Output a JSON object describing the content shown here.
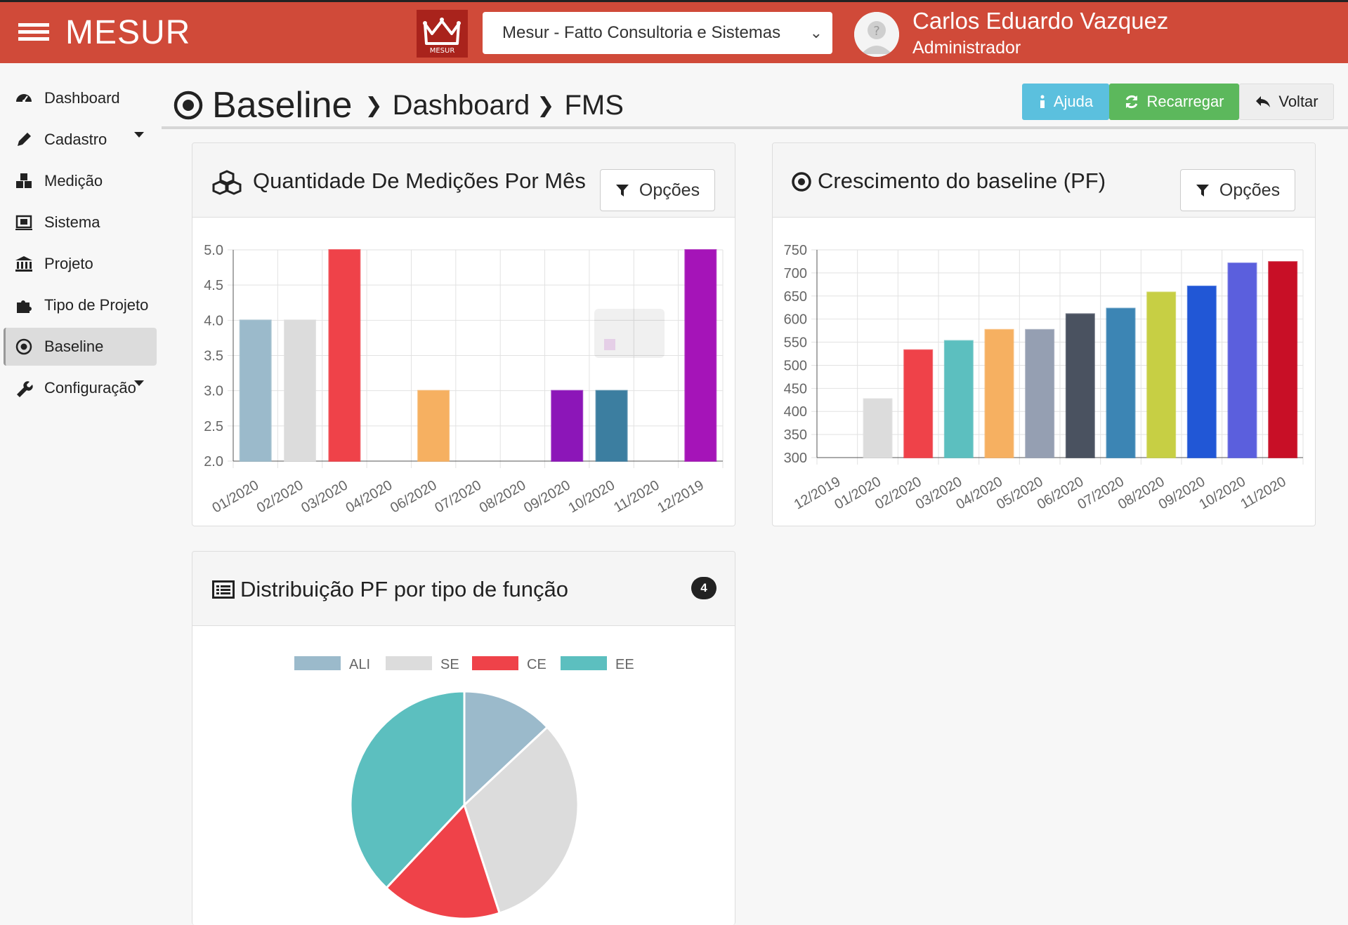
{
  "app": {
    "brand": "MESUR",
    "logo_text": "MESUR",
    "org_select_value": "Mesur - Fatto Consultoria e Sistemas",
    "user_name": "Carlos Eduardo Vazquez",
    "user_role": "Administrador"
  },
  "colors": {
    "topbar": "#d04a39",
    "help": "#5bc0de",
    "reload": "#5cb85c"
  },
  "sidebar": {
    "items": [
      {
        "label": "Dashboard",
        "icon": "dashboard-icon"
      },
      {
        "label": "Cadastro",
        "icon": "pencil-icon",
        "has_submenu": true
      },
      {
        "label": "Medição",
        "icon": "cubes-icon"
      },
      {
        "label": "Sistema",
        "icon": "system-icon"
      },
      {
        "label": "Projeto",
        "icon": "institution-icon"
      },
      {
        "label": "Tipo de Projeto",
        "icon": "puzzle-icon"
      },
      {
        "label": "Baseline",
        "icon": "dot-circle-icon",
        "active": true
      },
      {
        "label": "Configuração",
        "icon": "wrench-icon",
        "has_submenu": true
      }
    ]
  },
  "breadcrumb": {
    "root": "Baseline",
    "items": [
      "Dashboard",
      "FMS"
    ]
  },
  "actions": {
    "help": "Ajuda",
    "reload": "Recarregar",
    "back": "Voltar"
  },
  "panels": {
    "medicoes": {
      "title": "Quantidade De Medições Por Mês",
      "options": "Opções"
    },
    "crescimento": {
      "title": "Crescimento do baseline (PF)",
      "options": "Opções"
    },
    "distribuicao": {
      "title": "Distribuição PF por tipo de função",
      "badge": "4"
    }
  },
  "chart_data": [
    {
      "type": "bar",
      "categories": [
        "01/2020",
        "02/2020",
        "03/2020",
        "04/2020",
        "06/2020",
        "07/2020",
        "08/2020",
        "09/2020",
        "10/2020",
        "11/2020",
        "12/2019"
      ],
      "values": [
        4.0,
        4.0,
        5.0,
        null,
        3.0,
        null,
        null,
        3.0,
        3.0,
        null,
        5.0
      ],
      "colors": [
        "#9bbacb",
        "#dcdcdc",
        "#ef4249",
        "#ef4249",
        "#f6b061",
        "#f6b061",
        "#f6b061",
        "#8c16b8",
        "#3c7ea0",
        "#3c7ea0",
        "#a514b8"
      ],
      "ylim": [
        2.0,
        5.0
      ],
      "yticks": [
        "2.0",
        "2.5",
        "3.0",
        "3.5",
        "4.0",
        "4.5",
        "5.0"
      ],
      "grid": true
    },
    {
      "type": "bar",
      "categories": [
        "12/2019",
        "01/2020",
        "02/2020",
        "03/2020",
        "04/2020",
        "05/2020",
        "06/2020",
        "07/2020",
        "08/2020",
        "09/2020",
        "10/2020",
        "11/2020"
      ],
      "values": [
        300,
        427,
        533,
        553,
        577,
        577,
        611,
        623,
        658,
        671,
        721,
        724
      ],
      "colors": [
        "#9bbacb",
        "#dcdcdc",
        "#ef4249",
        "#5cbfbf",
        "#f6b061",
        "#959fb2",
        "#4a5260",
        "#3c85b4",
        "#c7cf44",
        "#2157d6",
        "#5b5fdd",
        "#c80f26"
      ],
      "ylim": [
        300,
        750
      ],
      "yticks": [
        "300",
        "350",
        "400",
        "450",
        "500",
        "550",
        "600",
        "650",
        "700",
        "750"
      ],
      "grid": true
    },
    {
      "type": "pie",
      "labels": [
        "ALI",
        "SE",
        "CE",
        "EE"
      ],
      "values": [
        13,
        32,
        17,
        38
      ],
      "colors": [
        "#9bbacb",
        "#dcdcdc",
        "#ef4249",
        "#5cbfbf"
      ],
      "legend": "top"
    }
  ]
}
